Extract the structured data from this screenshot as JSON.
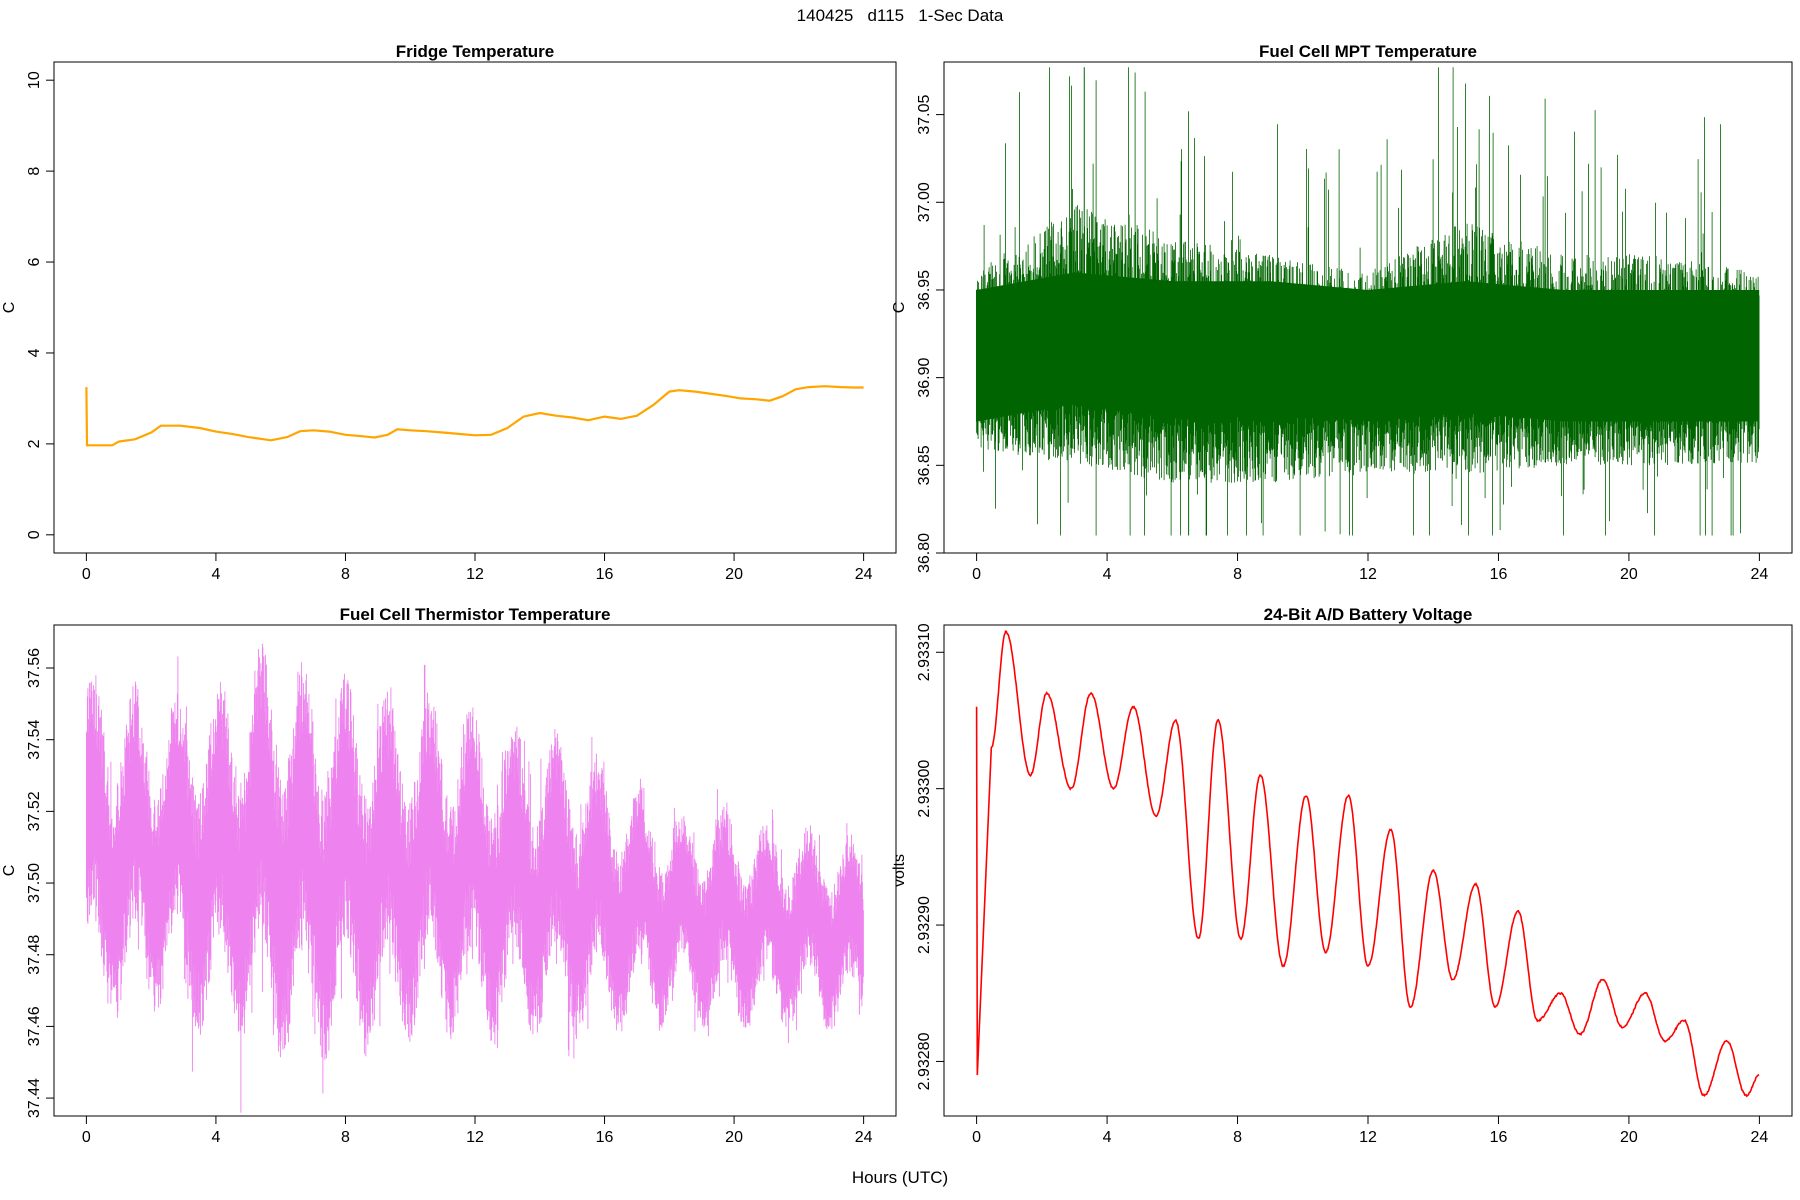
{
  "page": {
    "title": "140425   d115   1-Sec Data",
    "xlabel": "Hours (UTC)"
  },
  "chart_data": [
    {
      "type": "line",
      "title": "Fridge Temperature",
      "ylabel": "C",
      "xlim": [
        -1,
        25
      ],
      "ylim": [
        -0.4,
        10.4
      ],
      "xticks": [
        "0",
        "4",
        "8",
        "12",
        "16",
        "20",
        "24"
      ],
      "yticks": [
        "0",
        "2",
        "4",
        "6",
        "8",
        "10"
      ],
      "color": "#FFA500",
      "series": [
        {
          "x": [
            0,
            0.02,
            0.8,
            1,
            1.5,
            2,
            2.3,
            2.9,
            3.5,
            4,
            4.5,
            5,
            5.7,
            6.2,
            6.6,
            7,
            7.5,
            8,
            8.5,
            8.9,
            9.3,
            9.6,
            10,
            10.5,
            11,
            11.5,
            12,
            12.5,
            13,
            13.5,
            14,
            14.5,
            15,
            15.5,
            16,
            16.5,
            17,
            17.5,
            18,
            18.3,
            18.8,
            19.3,
            19.8,
            20.2,
            20.7,
            21.1,
            21.5,
            21.9,
            22.3,
            22.8,
            23.3,
            23.7,
            24
          ],
          "y": [
            3.25,
            1.97,
            1.97,
            2.05,
            2.1,
            2.25,
            2.4,
            2.4,
            2.35,
            2.27,
            2.22,
            2.15,
            2.08,
            2.15,
            2.28,
            2.3,
            2.27,
            2.2,
            2.17,
            2.14,
            2.2,
            2.32,
            2.3,
            2.28,
            2.25,
            2.22,
            2.19,
            2.2,
            2.35,
            2.6,
            2.68,
            2.62,
            2.58,
            2.52,
            2.6,
            2.55,
            2.62,
            2.85,
            3.15,
            3.18,
            3.15,
            3.1,
            3.05,
            3.0,
            2.98,
            2.95,
            3.05,
            3.2,
            3.25,
            3.27,
            3.25,
            3.24,
            3.24
          ]
        }
      ]
    },
    {
      "type": "line",
      "title": "Fuel Cell MPT Temperature",
      "ylabel": "C",
      "xlim": [
        -1,
        25
      ],
      "ylim": [
        36.8,
        37.08
      ],
      "xticks": [
        "0",
        "4",
        "8",
        "12",
        "16",
        "20",
        "24"
      ],
      "yticks": [
        "36.80",
        "36.85",
        "36.90",
        "36.95",
        "37.00",
        "37.05"
      ],
      "color": "#006400",
      "series": [
        {
          "x": [
            0,
            3,
            6,
            9,
            12,
            15,
            18,
            21,
            24
          ],
          "y": [
            36.91,
            36.92,
            36.915,
            36.915,
            36.91,
            36.915,
            36.91,
            36.91,
            36.91
          ],
          "band_low": [
            36.86,
            36.85,
            36.84,
            36.84,
            36.845,
            36.845,
            36.85,
            36.85,
            36.85
          ],
          "band_high": [
            36.96,
            37.0,
            36.98,
            36.97,
            36.96,
            36.99,
            36.97,
            36.97,
            36.96
          ],
          "spike_min": 36.81,
          "spike_max": 37.077
        }
      ]
    },
    {
      "type": "line",
      "title": "Fuel Cell Thermistor Temperature",
      "ylabel": "C",
      "xlim": [
        -1,
        25
      ],
      "ylim": [
        37.435,
        37.572
      ],
      "xticks": [
        "0",
        "4",
        "8",
        "12",
        "16",
        "20",
        "24"
      ],
      "yticks": [
        "37.44",
        "37.46",
        "37.48",
        "37.50",
        "37.52",
        "37.54",
        "37.56"
      ],
      "color": "#EE82EE",
      "series": [
        {
          "x": [
            0,
            1.3,
            2.6,
            3.9,
            5.3,
            6.6,
            7.9,
            9.2,
            10.5,
            11.8,
            13.1,
            14.5,
            15.8,
            17.1,
            18.4,
            19.7,
            21.0,
            22.3,
            23.6
          ],
          "center": [
            37.51,
            37.508,
            37.508,
            37.505,
            37.51,
            37.505,
            37.505,
            37.503,
            37.505,
            37.503,
            37.5,
            37.5,
            37.496,
            37.493,
            37.49,
            37.49,
            37.488,
            37.488,
            37.486
          ],
          "amplitude": [
            0.035,
            0.034,
            0.032,
            0.035,
            0.04,
            0.04,
            0.038,
            0.035,
            0.034,
            0.033,
            0.032,
            0.03,
            0.028,
            0.024,
            0.022,
            0.022,
            0.021,
            0.02,
            0.02
          ],
          "period_hours": 1.3
        }
      ]
    },
    {
      "type": "line",
      "title": "24-Bit A/D Battery Voltage",
      "ylabel": "volts",
      "xlim": [
        -1,
        25
      ],
      "ylim": [
        2.93276,
        2.93312
      ],
      "xticks": [
        "0",
        "4",
        "8",
        "12",
        "16",
        "20",
        "24"
      ],
      "yticks": [
        "2.93280",
        "2.93290",
        "2.93300",
        "2.93310"
      ],
      "color": "#FF0000",
      "series": [
        {
          "x": [
            0,
            0.02,
            0.45,
            0.9,
            1.65,
            2.15,
            2.9,
            3.5,
            4.2,
            4.8,
            5.5,
            6.1,
            6.8,
            7.4,
            8.1,
            8.7,
            9.4,
            10.1,
            10.7,
            11.4,
            12.0,
            12.7,
            13.3,
            14.0,
            14.6,
            15.3,
            15.9,
            16.6,
            17.2,
            17.9,
            18.5,
            19.2,
            19.8,
            20.5,
            21.1,
            21.7,
            22.3,
            23.0,
            23.6,
            24.0
          ],
          "y": [
            2.93306,
            2.93279,
            2.93303,
            2.933115,
            2.93301,
            2.93307,
            2.933,
            2.93307,
            2.933,
            2.93306,
            2.93298,
            2.93305,
            2.93289,
            2.93305,
            2.93289,
            2.93301,
            2.93287,
            2.932995,
            2.93288,
            2.932995,
            2.93287,
            2.93297,
            2.93284,
            2.93294,
            2.93286,
            2.93293,
            2.93284,
            2.93291,
            2.93283,
            2.93285,
            2.93282,
            2.93286,
            2.932825,
            2.93285,
            2.932815,
            2.93283,
            2.932775,
            2.932815,
            2.932775,
            2.93279
          ]
        }
      ]
    }
  ]
}
